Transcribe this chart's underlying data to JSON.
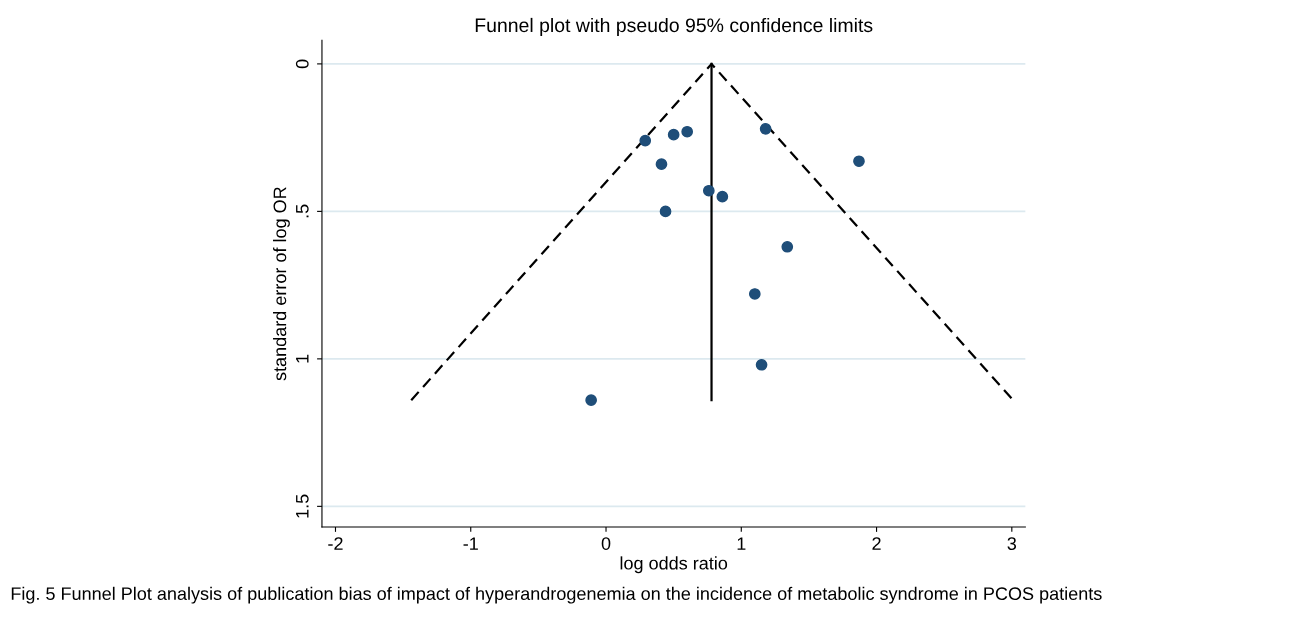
{
  "chart_data": {
    "type": "scatter",
    "title": "Funnel plot with pseudo 95% confidence limits",
    "xlabel": "log odds ratio",
    "ylabel": "standard error of log OR",
    "x": [
      0.29,
      0.5,
      0.6,
      0.41,
      1.18,
      1.87,
      0.76,
      0.86,
      0.44,
      1.34,
      1.1,
      1.15,
      -0.11
    ],
    "series": [
      {
        "color": "#1f4e79",
        "marker": "circle",
        "values": [
          0.26,
          0.24,
          0.23,
          0.34,
          0.22,
          0.33,
          0.43,
          0.45,
          0.5,
          0.62,
          0.78,
          1.02,
          1.14
        ]
      },
      {
        "type": "line",
        "color": "#000000",
        "line_style": "dashed",
        "marker": "none",
        "x": [
          -1.44,
          0.78,
          3.01
        ],
        "values": [
          1.14,
          0,
          1.14
        ]
      },
      {
        "type": "line",
        "color": "#000000",
        "line_style": "solid",
        "marker": "none",
        "x": [
          0.78,
          0.78
        ],
        "values": [
          0,
          1.14
        ]
      }
    ],
    "xlim": [
      -2.1,
      3.1
    ],
    "ylim": [
      1.57,
      -0.08
    ],
    "xticks": [
      -2,
      -1,
      0,
      1,
      2,
      3
    ],
    "yticks": [
      0,
      {
        "value": 0.5,
        "label": ".5"
      },
      1,
      1.5
    ],
    "grid": "y",
    "legend": false,
    "annotations": [
      "Fig. 5 Funnel Plot analysis of publication bias of impact of hyperandrogenemia on the incidence of metabolic syndrome in PCOS patients"
    ]
  }
}
